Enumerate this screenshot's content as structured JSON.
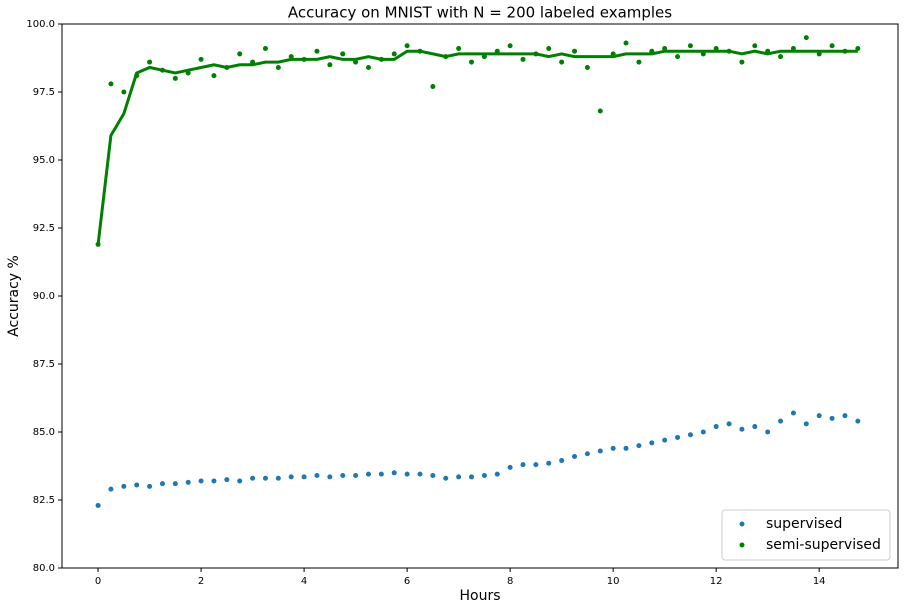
{
  "chart_data": {
    "type": "scatter",
    "title": "Accuracy on MNIST with N = 200 labeled examples",
    "x_label": "Hours",
    "y_label": "Accuracy %",
    "xlim": [
      -0.7,
      15.53
    ],
    "ylim": [
      80,
      100
    ],
    "xticks": [
      0,
      2,
      4,
      6,
      8,
      10,
      12,
      14
    ],
    "yticks": [
      {
        "value": 80,
        "label": "80.0"
      },
      82.5,
      {
        "value": 85,
        "label": "85.0"
      },
      87.5,
      {
        "value": 90,
        "label": "90.0"
      },
      92.5,
      {
        "value": 95,
        "label": "95.0"
      },
      97.5,
      {
        "value": 100,
        "label": "100.0"
      }
    ],
    "legend": "lower right",
    "x": [
      0,
      0.25,
      0.5,
      0.75,
      1,
      1.25,
      1.5,
      1.75,
      2,
      2.25,
      2.5,
      2.75,
      3,
      3.25,
      3.5,
      3.75,
      4,
      4.25,
      4.5,
      4.75,
      5,
      5.25,
      5.5,
      5.75,
      6,
      6.25,
      6.5,
      6.75,
      7,
      7.25,
      7.5,
      7.75,
      8,
      8.25,
      8.5,
      8.75,
      9,
      9.25,
      9.5,
      9.75,
      10,
      10.25,
      10.5,
      10.75,
      11,
      11.25,
      11.5,
      11.75,
      12,
      12.25,
      12.5,
      12.75,
      13,
      13.25,
      13.5,
      13.75,
      14,
      14.25,
      14.5,
      14.75
    ],
    "series": [
      {
        "name": "supervised",
        "color": "#1f77b4",
        "values": [
          82.3,
          82.9,
          83.0,
          83.05,
          83.0,
          83.1,
          83.1,
          83.15,
          83.2,
          83.2,
          83.25,
          83.2,
          83.3,
          83.3,
          83.3,
          83.35,
          83.35,
          83.4,
          83.35,
          83.4,
          83.4,
          83.45,
          83.45,
          83.5,
          83.45,
          83.45,
          83.4,
          83.3,
          83.35,
          83.35,
          83.4,
          83.45,
          83.7,
          83.8,
          83.8,
          83.85,
          83.95,
          84.1,
          84.2,
          84.3,
          84.4,
          84.4,
          84.5,
          84.6,
          84.7,
          84.8,
          84.9,
          85.0,
          85.2,
          85.3,
          85.1,
          85.2,
          85.0,
          85.4,
          85.7,
          85.3,
          85.6,
          85.5,
          85.6,
          85.4
        ]
      },
      {
        "name": "semi-supervised",
        "color": "#008000",
        "values": [
          91.9,
          97.8,
          97.5,
          98.1,
          98.6,
          98.3,
          98.0,
          98.2,
          98.7,
          98.1,
          98.4,
          98.9,
          98.6,
          99.1,
          98.4,
          98.8,
          98.7,
          99.0,
          98.5,
          98.9,
          98.6,
          98.4,
          98.7,
          98.9,
          99.2,
          99.0,
          97.7,
          98.8,
          99.1,
          98.6,
          98.8,
          99.0,
          99.2,
          98.7,
          98.9,
          99.1,
          98.6,
          99.0,
          98.4,
          96.8,
          98.9,
          99.3,
          98.6,
          99.0,
          99.1,
          98.8,
          99.2,
          98.9,
          99.1,
          99.0,
          98.6,
          99.2,
          99.0,
          98.8,
          99.1,
          99.5,
          98.9,
          99.2,
          99.0,
          99.1
        ],
        "trend": [
          91.9,
          95.9,
          96.7,
          98.2,
          98.4,
          98.3,
          98.2,
          98.3,
          98.4,
          98.5,
          98.4,
          98.5,
          98.5,
          98.6,
          98.6,
          98.7,
          98.7,
          98.7,
          98.8,
          98.7,
          98.7,
          98.8,
          98.7,
          98.7,
          99.0,
          99.0,
          98.9,
          98.8,
          98.9,
          98.9,
          98.9,
          98.9,
          98.9,
          98.9,
          98.9,
          98.8,
          98.9,
          98.8,
          98.8,
          98.8,
          98.8,
          98.9,
          98.9,
          98.9,
          99.0,
          99.0,
          99.0,
          99.0,
          99.0,
          99.0,
          98.9,
          99.0,
          98.9,
          99.0,
          99.0,
          99.0,
          99.0,
          99.0,
          99.0,
          99.0
        ]
      }
    ]
  }
}
